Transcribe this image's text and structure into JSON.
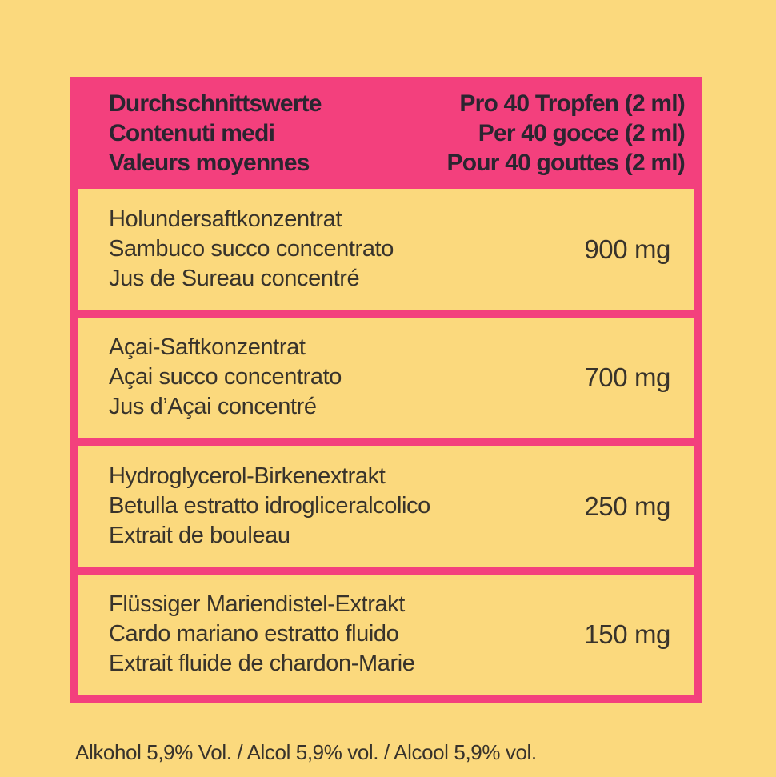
{
  "colors": {
    "background_yellow": "#FBD97D",
    "accent_pink": "#F3407D",
    "text_dark": "#38332B"
  },
  "table": {
    "header": {
      "left_lines": [
        "Durchschnittswerte",
        "Contenuti medi",
        "Valeurs moyennes"
      ],
      "right_lines": [
        "Pro 40 Tropfen (2 ml)",
        "Per 40 gocce (2 ml)",
        "Pour 40 gouttes (2 ml)"
      ]
    },
    "rows": [
      {
        "lines": [
          "Holundersaftkonzentrat",
          "Sambuco succo concentrato",
          "Jus de Sureau concentré"
        ],
        "value": "900 mg"
      },
      {
        "lines": [
          "Açai-Saftkonzentrat",
          "Açai succo concentrato",
          "Jus d’Açai concentré"
        ],
        "value": "700 mg"
      },
      {
        "lines": [
          "Hydroglycerol-Birkenextrakt",
          "Betulla estratto idrogliceralcolico",
          "Extrait de bouleau"
        ],
        "value": "250 mg"
      },
      {
        "lines": [
          "Flüssiger Mariendistel-Extrakt",
          "Cardo mariano estratto fluido",
          "Extrait fluide de chardon-Marie"
        ],
        "value": "150 mg"
      }
    ]
  },
  "footnote": "Alkohol 5,9% Vol. / Alcol 5,9% vol. / Alcool 5,9% vol."
}
